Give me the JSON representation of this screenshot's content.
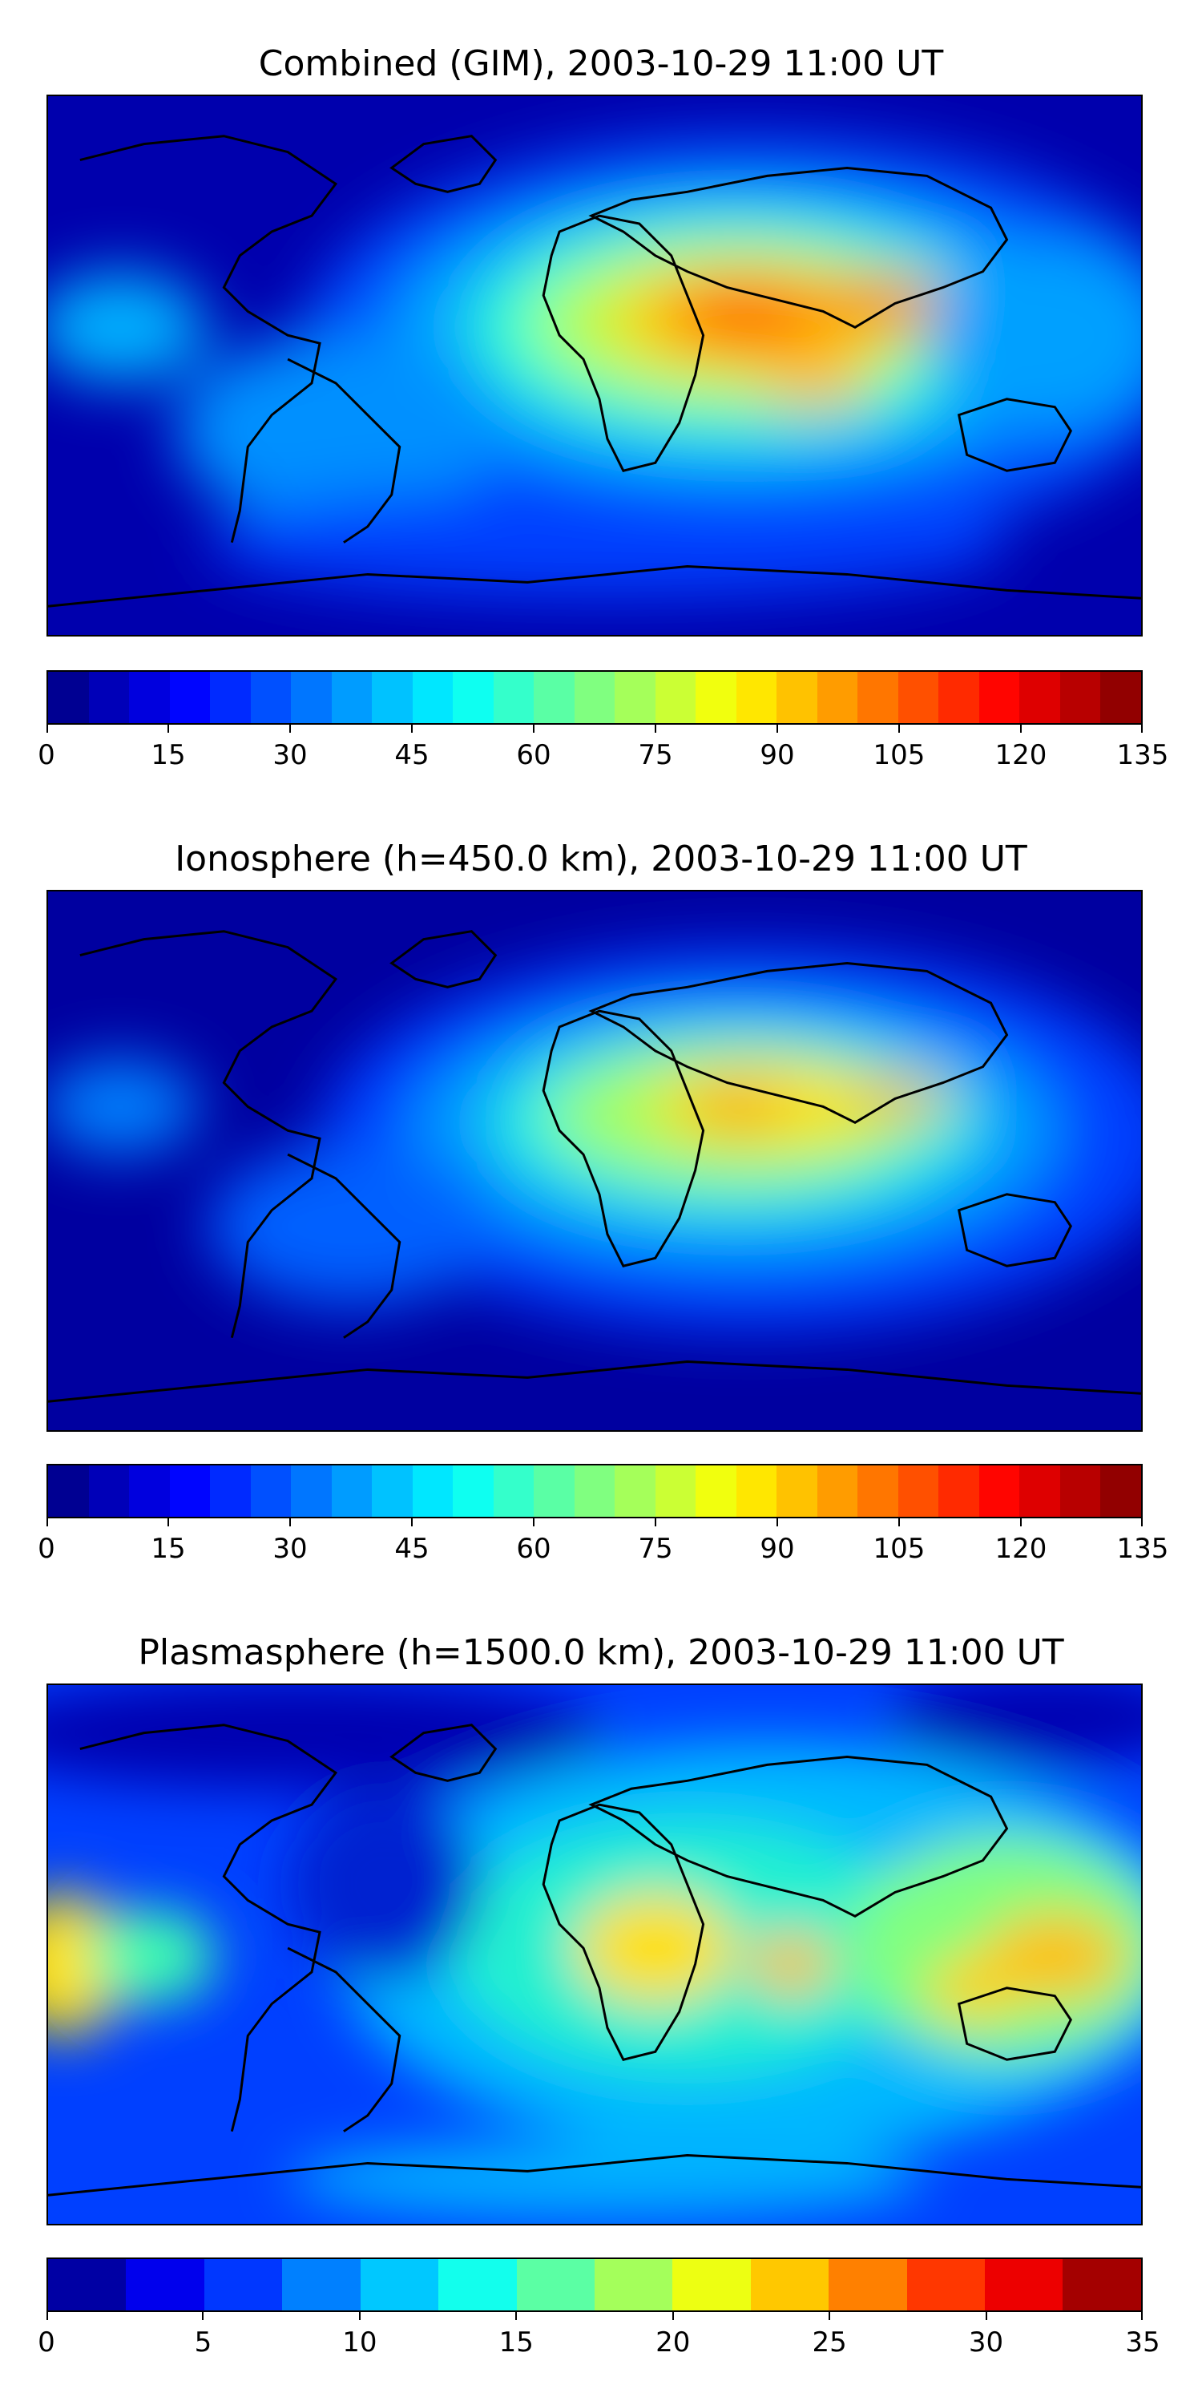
{
  "panels": [
    {
      "title": "Combined (GIM), 2003-10-29 11:00 UT",
      "colorbar": {
        "min": 0,
        "max": 135,
        "levels": 27,
        "ticks": [
          "0",
          "15",
          "30",
          "45",
          "60",
          "75",
          "90",
          "105",
          "120",
          "135"
        ]
      }
    },
    {
      "title": "Ionosphere  (h=450.0 km), 2003-10-29 11:00 UT",
      "colorbar": {
        "min": 0,
        "max": 135,
        "levels": 27,
        "ticks": [
          "0",
          "15",
          "30",
          "45",
          "60",
          "75",
          "90",
          "105",
          "120",
          "135"
        ]
      }
    },
    {
      "title": "Plasmasphere (h=1500.0 km), 2003-10-29 11:00 UT",
      "colorbar": {
        "min": 0,
        "max": 35,
        "levels": 14,
        "ticks": [
          "0",
          "5",
          "10",
          "15",
          "20",
          "25",
          "30",
          "35"
        ]
      }
    }
  ],
  "colormap": "jet",
  "coastline_color": "#000000"
}
